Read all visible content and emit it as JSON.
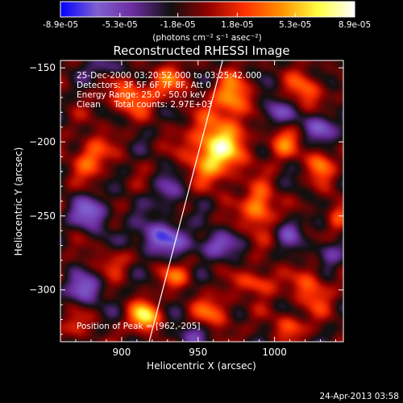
{
  "chart_data": {
    "type": "heatmap",
    "title": "Reconstructed RHESSI Image",
    "xlabel": "Heliocentric X (arcsec)",
    "ylabel": "Heliocentric Y (arcsec)",
    "xlim": [
      860,
      1045
    ],
    "ylim": [
      -335,
      -145
    ],
    "x_ticks": [
      900,
      950,
      1000
    ],
    "y_ticks": [
      -150,
      -200,
      -250,
      -300
    ],
    "colorbar": {
      "min": -8.9e-05,
      "max": 8.9e-05,
      "tick_labels": [
        "-8.9e-05",
        "-5.3e-05",
        "-1.8e-05",
        "1.8e-05",
        "5.3e-05",
        "8.9e-05"
      ],
      "tick_values": [
        -8.9e-05,
        -5.3e-05,
        -1.8e-05,
        1.8e-05,
        5.3e-05,
        8.9e-05
      ],
      "units_label": "(photons cm⁻² s⁻¹ asec⁻²)",
      "colormap": [
        "#0000ff",
        "#8060d0",
        "#6a2b9c",
        "#101010",
        "#900000",
        "#ff3000",
        "#ff9000",
        "#ffff40",
        "#ffffff"
      ]
    },
    "annotations": {
      "time_range": "25-Dec-2000 03:20:52.000 to 03:25:42.000",
      "detectors": "Detectors: 3F 5F 6F 7F 8F, Att 0",
      "energy_range": "Energy Range: 25.0 - 50.0 keV",
      "clean_counts": "Clean     Total counts: 2.97E+03",
      "peak": "Position of Peak = [962,-205]"
    },
    "limb_line": {
      "x": [
        918,
        966
      ],
      "y": [
        -335,
        -145
      ]
    },
    "sources": [
      {
        "x": 962,
        "y": -205,
        "amp": 1.0,
        "sx": 12,
        "sy": 14
      },
      {
        "x": 972,
        "y": -170,
        "amp": 0.7,
        "sx": 8,
        "sy": 10
      },
      {
        "x": 990,
        "y": -245,
        "amp": 0.75,
        "sx": 7,
        "sy": 10
      },
      {
        "x": 915,
        "y": -318,
        "amp": 0.85,
        "sx": 7,
        "sy": 7
      },
      {
        "x": 905,
        "y": -170,
        "amp": 0.55,
        "sx": 10,
        "sy": 8
      },
      {
        "x": 880,
        "y": -210,
        "amp": 0.55,
        "sx": 8,
        "sy": 10
      },
      {
        "x": 930,
        "y": -160,
        "amp": 0.45,
        "sx": 9,
        "sy": 8
      },
      {
        "x": 1020,
        "y": -165,
        "amp": 0.5,
        "sx": 8,
        "sy": 8
      },
      {
        "x": 1030,
        "y": -215,
        "amp": 0.55,
        "sx": 6,
        "sy": 8
      },
      {
        "x": 1005,
        "y": -200,
        "amp": 0.5,
        "sx": 7,
        "sy": 8
      },
      {
        "x": 990,
        "y": -295,
        "amp": 0.55,
        "sx": 8,
        "sy": 6
      },
      {
        "x": 1025,
        "y": -300,
        "amp": 0.5,
        "sx": 8,
        "sy": 10
      },
      {
        "x": 935,
        "y": -290,
        "amp": 0.4,
        "sx": 8,
        "sy": 6
      },
      {
        "x": 960,
        "y": -315,
        "amp": 0.45,
        "sx": 9,
        "sy": 8
      },
      {
        "x": 895,
        "y": -280,
        "amp": 0.35,
        "sx": 7,
        "sy": 6
      },
      {
        "x": 870,
        "y": -325,
        "amp": 0.35,
        "sx": 6,
        "sy": 6
      },
      {
        "x": 1040,
        "y": -250,
        "amp": 0.4,
        "sx": 5,
        "sy": 8
      },
      {
        "x": 1010,
        "y": -325,
        "amp": 0.45,
        "sx": 7,
        "sy": 6
      },
      {
        "x": 880,
        "y": -248,
        "amp": -0.55,
        "sx": 9,
        "sy": 8
      },
      {
        "x": 925,
        "y": -265,
        "amp": -0.6,
        "sx": 12,
        "sy": 8
      },
      {
        "x": 1000,
        "y": -180,
        "amp": -0.5,
        "sx": 7,
        "sy": 7
      },
      {
        "x": 1030,
        "y": -190,
        "amp": -0.55,
        "sx": 8,
        "sy": 7
      },
      {
        "x": 960,
        "y": -270,
        "amp": -0.5,
        "sx": 10,
        "sy": 6
      },
      {
        "x": 875,
        "y": -300,
        "amp": -0.55,
        "sx": 8,
        "sy": 7
      },
      {
        "x": 1035,
        "y": -275,
        "amp": -0.45,
        "sx": 6,
        "sy": 7
      },
      {
        "x": 930,
        "y": -235,
        "amp": -0.35,
        "sx": 7,
        "sy": 9
      },
      {
        "x": 945,
        "y": -330,
        "amp": -0.4,
        "sx": 8,
        "sy": 5
      },
      {
        "x": 890,
        "y": -150,
        "amp": -0.35,
        "sx": 8,
        "sy": 5
      },
      {
        "x": 1010,
        "y": -260,
        "amp": -0.4,
        "sx": 6,
        "sy": 7
      }
    ],
    "background_level": -0.15,
    "ripple": {
      "amp": 0.18,
      "kx": 0.16,
      "ky": 0.14
    }
  },
  "footer": {
    "timestamp": "24-Apr-2013 03:58"
  }
}
